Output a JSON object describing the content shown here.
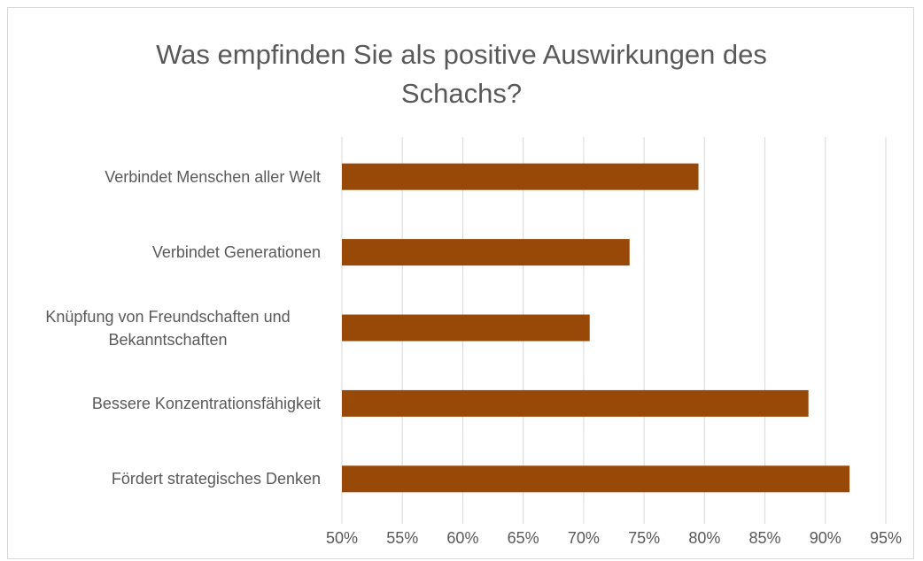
{
  "chart_data": {
    "type": "bar",
    "orientation": "horizontal",
    "title": "Was empfinden Sie als positive Auswirkungen des Schachs?",
    "categories": [
      "Verbindet Menschen aller Welt",
      "Verbindet Generationen",
      "Knüpfung von Freundschaften und Bekanntschaften",
      "Bessere Konzentrationsfähigkeit",
      "Fördert strategisches Denken"
    ],
    "values": [
      79.5,
      73.8,
      70.5,
      88.6,
      92
    ],
    "color": "#984807",
    "xlim": [
      50,
      95
    ],
    "xticks": [
      {
        "value": 50,
        "label": "50%"
      },
      {
        "value": 55,
        "label": "55%"
      },
      {
        "value": 60,
        "label": "60%"
      },
      {
        "value": 65,
        "label": "65%"
      },
      {
        "value": 70,
        "label": "70%"
      },
      {
        "value": 75,
        "label": "75%"
      },
      {
        "value": 80,
        "label": "80%"
      },
      {
        "value": 85,
        "label": "85%"
      },
      {
        "value": 90,
        "label": "90%"
      },
      {
        "value": 95,
        "label": "95%"
      }
    ],
    "grid": true
  }
}
